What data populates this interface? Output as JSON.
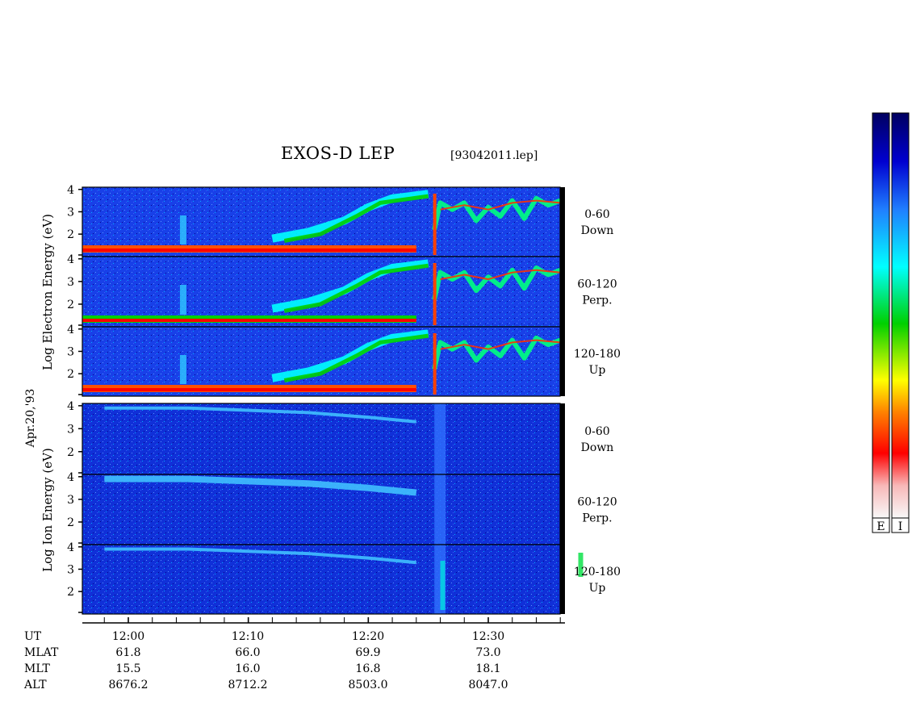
{
  "header": {
    "title": "EXOS-D LEP",
    "file": "[93042011.lep]"
  },
  "chart_data": {
    "type": "heatmap",
    "x_ticks": [
      "12:00",
      "12:10",
      "12:20",
      "12:30"
    ],
    "x_range_minutes": [
      0,
      40
    ],
    "yticks": [
      "2",
      "3",
      "4"
    ],
    "electron_label": [
      "Log",
      "Electron",
      "Energy",
      "(eV)"
    ],
    "ion_label": [
      "Log",
      "Ion",
      "Energy",
      "(eV)"
    ],
    "date_label": "Apr.20,'93",
    "panels": [
      {
        "species": "Electron",
        "pitch": "0-60",
        "dir": "Down"
      },
      {
        "species": "Electron",
        "pitch": "60-120",
        "dir": "Perp."
      },
      {
        "species": "Electron",
        "pitch": "120-180",
        "dir": "Up"
      },
      {
        "species": "Ion",
        "pitch": "0-60",
        "dir": "Down"
      },
      {
        "species": "Ion",
        "pitch": "60-120",
        "dir": "Perp."
      },
      {
        "species": "Ion",
        "pitch": "120-180",
        "dir": "Up"
      }
    ],
    "ephemeris": [
      {
        "label": "UT",
        "values": [
          "12:00",
          "12:10",
          "12:20",
          "12:30"
        ]
      },
      {
        "label": "MLAT",
        "values": [
          "61.8",
          "66.0",
          "69.9",
          "73.0"
        ]
      },
      {
        "label": "MLT",
        "values": [
          "15.5",
          "16.0",
          "16.8",
          "18.1"
        ]
      },
      {
        "label": "ALT",
        "values": [
          "8676.2",
          "8712.2",
          "8503.0",
          "8047.0"
        ]
      }
    ],
    "colorbars": [
      {
        "label": "E"
      },
      {
        "label": "I"
      }
    ],
    "colormap": [
      "#f8f8f8",
      "#f8c0c0",
      "#ff0000",
      "#ff8000",
      "#ffff00",
      "#00d000",
      "#00ffff",
      "#2080ff",
      "#0000d0",
      "#000060"
    ]
  }
}
